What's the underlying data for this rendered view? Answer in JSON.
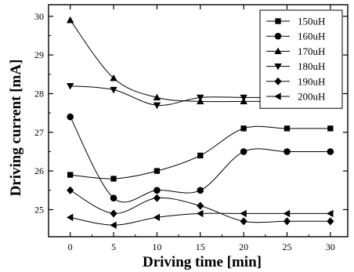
{
  "chart_data": {
    "type": "line",
    "xlabel": "Driving time [min]",
    "ylabel": "Driving current [mA]",
    "xlim": [
      -2.5,
      32
    ],
    "ylim": [
      24.3,
      30.3
    ],
    "xticks": [
      0,
      5,
      10,
      15,
      20,
      25,
      30
    ],
    "yticks": [
      25,
      26,
      27,
      28,
      29,
      30
    ],
    "legend_position": "top-right",
    "grid": false,
    "smooth": true,
    "x": [
      0,
      5,
      10,
      15,
      20,
      25,
      30
    ],
    "series": [
      {
        "name": "150uH",
        "marker": "square",
        "values": [
          25.9,
          25.8,
          26.0,
          26.4,
          27.1,
          27.1,
          27.1
        ]
      },
      {
        "name": "160uH",
        "marker": "circle",
        "values": [
          27.4,
          25.3,
          25.5,
          25.5,
          26.5,
          26.5,
          26.5
        ]
      },
      {
        "name": "170uH",
        "marker": "triangle-up",
        "values": [
          29.9,
          28.4,
          27.9,
          27.8,
          27.8,
          27.8,
          27.8
        ]
      },
      {
        "name": "180uH",
        "marker": "triangle-down",
        "values": [
          28.2,
          28.1,
          27.7,
          27.9,
          27.9,
          27.9,
          27.9
        ]
      },
      {
        "name": "190uH",
        "marker": "diamond",
        "values": [
          25.5,
          24.9,
          25.3,
          25.1,
          24.7,
          24.7,
          24.7
        ]
      },
      {
        "name": "200uH",
        "marker": "triangle-left",
        "values": [
          24.8,
          24.6,
          24.8,
          24.9,
          24.9,
          24.9,
          24.9
        ]
      }
    ]
  }
}
